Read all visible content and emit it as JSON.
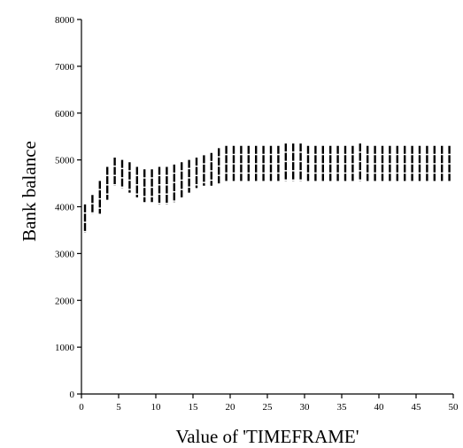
{
  "chart_data": {
    "type": "range-bar",
    "title": "",
    "xlabel": "Value of 'TIMEFRAME'",
    "ylabel": "Bank balance",
    "xlim": [
      0,
      50
    ],
    "ylim": [
      0,
      8000
    ],
    "xticks": [
      "0",
      "5",
      "10",
      "15",
      "20",
      "25",
      "30",
      "35",
      "40",
      "45",
      "50"
    ],
    "yticks": [
      "0",
      "1000",
      "2000",
      "3000",
      "4000",
      "5000",
      "6000",
      "7000",
      "8000"
    ],
    "grid": false,
    "legend": "none",
    "mark_color": "#000000",
    "x": [
      0,
      1,
      2,
      3,
      4,
      5,
      6,
      7,
      8,
      9,
      10,
      11,
      12,
      13,
      14,
      15,
      16,
      17,
      18,
      19,
      20,
      21,
      22,
      23,
      24,
      25,
      26,
      27,
      28,
      29,
      30,
      31,
      32,
      33,
      34,
      35,
      36,
      37,
      38,
      39,
      40,
      41,
      42,
      43,
      44,
      45,
      46,
      47,
      48,
      49
    ],
    "low": [
      3450,
      3850,
      3850,
      4150,
      4450,
      4400,
      4300,
      4200,
      4100,
      4100,
      4050,
      4050,
      4100,
      4200,
      4300,
      4400,
      4450,
      4450,
      4500,
      4550,
      4550,
      4550,
      4550,
      4550,
      4550,
      4550,
      4550,
      4550,
      4550,
      4550,
      4550,
      4550,
      4550,
      4550,
      4550,
      4550,
      4550,
      4550,
      4550,
      4550,
      4550,
      4550,
      4550,
      4550,
      4550,
      4550,
      4550,
      4550,
      4550,
      4550
    ],
    "high": [
      4050,
      4250,
      4550,
      4850,
      5050,
      5000,
      4950,
      4850,
      4800,
      4800,
      4850,
      4850,
      4900,
      4950,
      5000,
      5050,
      5100,
      5150,
      5250,
      5300,
      5300,
      5300,
      5300,
      5300,
      5300,
      5300,
      5300,
      5350,
      5350,
      5350,
      5300,
      5300,
      5300,
      5300,
      5300,
      5300,
      5300,
      5350,
      5300,
      5300,
      5300,
      5300,
      5300,
      5300,
      5300,
      5300,
      5300,
      5300,
      5300,
      5300
    ]
  }
}
